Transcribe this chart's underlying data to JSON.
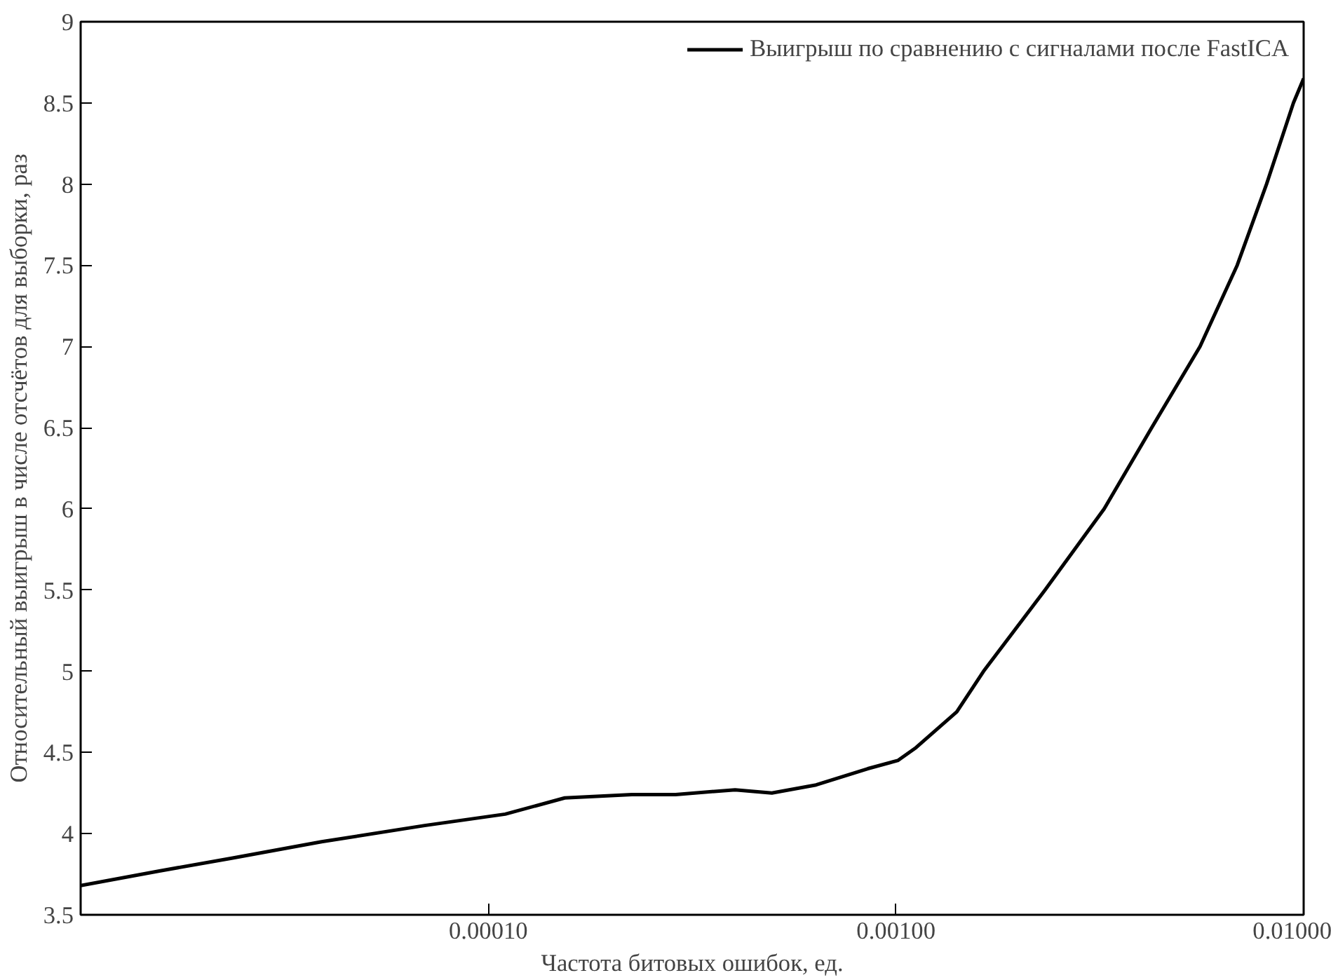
{
  "chart_data": {
    "type": "line",
    "xlabel": "Частота битовых ошибок, ед.",
    "ylabel": "Относительный выигрыш в числе отсчётов для выборки, раз",
    "log": "x",
    "grid": false,
    "legend": "top right",
    "marker": "none",
    "line_style": "solid",
    "xlim": [
      1e-05,
      0.01
    ],
    "xticks": [
      {
        "value": 0.0001,
        "label": "0.00010"
      },
      {
        "value": 0.001,
        "label": "0.00100"
      },
      {
        "value": 0.01,
        "label": "0.01000"
      }
    ],
    "ylim": [
      3.5,
      9
    ],
    "yticks": [
      3.5,
      4,
      4.5,
      5,
      5.5,
      6,
      6.5,
      7,
      7.5,
      8,
      8.5,
      9
    ],
    "x": [
      1e-05,
      1.56e-05,
      2.36e-05,
      3.9e-05,
      6.98e-05,
      0.00011,
      0.000154,
      0.000225,
      0.000288,
      0.000403,
      0.000496,
      0.000637,
      0.000853,
      0.00101,
      0.00112,
      0.00141,
      0.00164,
      0.00232,
      0.00324,
      0.00424,
      0.00557,
      0.00687,
      0.00811,
      0.00944,
      0.01
    ],
    "series": [
      {
        "name": "Выигрыш по сравнению с сигналами после FastICA",
        "color": "#000000",
        "values": [
          3.68,
          3.77,
          3.85,
          3.95,
          4.05,
          4.12,
          4.22,
          4.24,
          4.24,
          4.27,
          4.25,
          4.3,
          4.4,
          4.45,
          4.53,
          4.75,
          5.0,
          5.5,
          6.0,
          6.5,
          7.0,
          7.5,
          8.0,
          8.5,
          8.65
        ]
      }
    ]
  }
}
